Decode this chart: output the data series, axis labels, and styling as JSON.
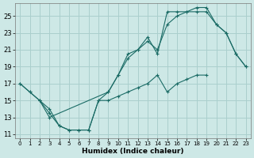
{
  "xlabel": "Humidex (Indice chaleur)",
  "background_color": "#cde8e6",
  "grid_color": "#aacfcd",
  "line_color": "#1a6b65",
  "xlim": [
    -0.5,
    23.5
  ],
  "ylim": [
    10.5,
    26.5
  ],
  "xticks": [
    0,
    1,
    2,
    3,
    4,
    5,
    6,
    7,
    8,
    9,
    10,
    11,
    12,
    13,
    14,
    15,
    16,
    17,
    18,
    19,
    20,
    21,
    22,
    23
  ],
  "yticks": [
    11,
    13,
    15,
    17,
    19,
    21,
    23,
    25
  ],
  "curve1_x": [
    0,
    1,
    2,
    3,
    4,
    5,
    6,
    7,
    8,
    9,
    10,
    11,
    12,
    13,
    14,
    15,
    16,
    17,
    18,
    19,
    20,
    21,
    22,
    23
  ],
  "curve1_y": [
    17,
    16,
    15,
    14,
    12,
    11.5,
    11.5,
    11.5,
    15,
    16,
    18,
    20.5,
    21,
    22.5,
    20.5,
    25.5,
    25.5,
    25.5,
    26,
    26,
    24,
    23,
    20.5,
    19
  ],
  "curve2_x": [
    0,
    1,
    2,
    3,
    9,
    10,
    11,
    12,
    13,
    14,
    15,
    16,
    17,
    18,
    19,
    20,
    21,
    22,
    23
  ],
  "curve2_y": [
    17,
    16,
    15,
    13,
    16,
    18,
    20,
    21,
    22,
    21,
    24,
    25,
    25.5,
    25.5,
    25.5,
    24,
    23,
    20.5,
    19
  ],
  "curve3_x": [
    2,
    3,
    4,
    5,
    6,
    7,
    8,
    9,
    10,
    11,
    12,
    13,
    14,
    15,
    16,
    17,
    18,
    19,
    20,
    21,
    22,
    23
  ],
  "curve3_y": [
    15,
    13.5,
    12,
    11.5,
    11.5,
    11.5,
    15,
    15,
    15.5,
    16,
    16.5,
    17,
    18,
    16,
    17,
    17.5,
    18,
    18,
    null,
    null,
    null,
    null
  ]
}
